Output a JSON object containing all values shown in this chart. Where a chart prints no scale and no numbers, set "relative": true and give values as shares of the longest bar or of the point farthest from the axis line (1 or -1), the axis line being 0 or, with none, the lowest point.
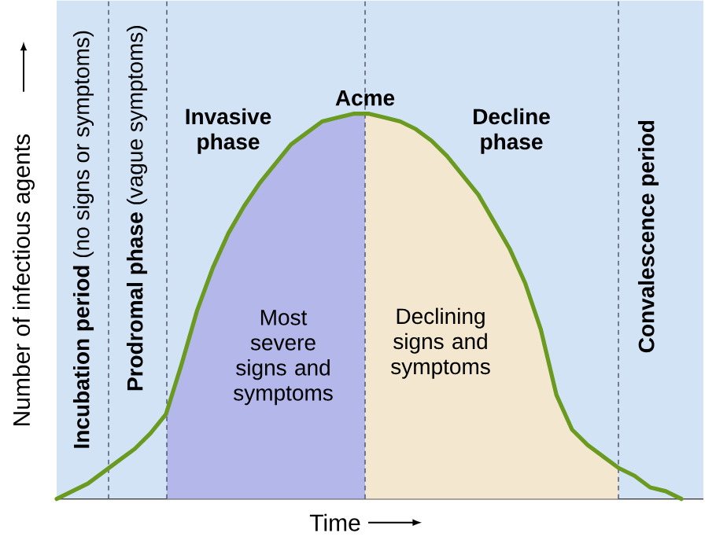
{
  "chart_data": {
    "type": "line",
    "relative": true,
    "xlabel": "Time",
    "ylabel": "Number of infectious agents",
    "marker": "none",
    "line_style": "solid",
    "categories": [
      null,
      null,
      null,
      null,
      null,
      null,
      null,
      null,
      null,
      null,
      null,
      null,
      null,
      null,
      null,
      null,
      null,
      null,
      null,
      null,
      null,
      null,
      null,
      null,
      null,
      null,
      null,
      null,
      null,
      null,
      null,
      null,
      null,
      null,
      null,
      null,
      null,
      null,
      null,
      null,
      null
    ],
    "series": [
      {
        "color": "#6a9a1f",
        "values": [
          0,
          0.02,
          0.04,
          0.07,
          0.1,
          0.13,
          0.17,
          0.22,
          0.35,
          0.49,
          0.6,
          0.69,
          0.76,
          0.82,
          0.87,
          0.92,
          0.95,
          0.98,
          0.99,
          1.0,
          1.0,
          0.99,
          0.98,
          0.96,
          0.93,
          0.89,
          0.84,
          0.79,
          0.72,
          0.65,
          0.56,
          0.44,
          0.27,
          0.18,
          0.14,
          0.11,
          0.08,
          0.06,
          0.03,
          0.02,
          0
        ]
      }
    ],
    "annotations": [
      "**Incubation period** (no signs or symptoms)",
      "**Prodromal phase** (vague symptoms)",
      "Invasive phase",
      "Acme",
      "Decline phase",
      "Convalescence period",
      "Most severe signs and symptoms",
      "Declining signs and symptoms"
    ]
  }
}
